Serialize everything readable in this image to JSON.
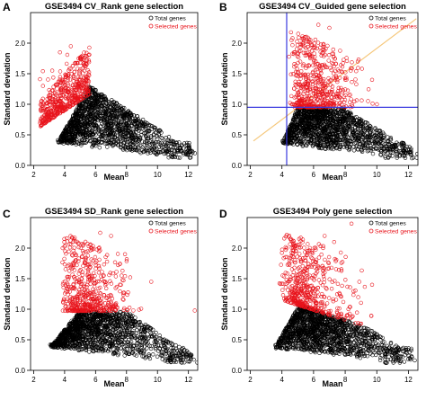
{
  "chart_data": [
    {
      "type": "scatter",
      "panel_letter": "A",
      "title": "GSE3494 CV_Rank gene selection",
      "xlabel": "Mean",
      "ylabel": "Standard deviation",
      "xlim": [
        1.8,
        12.6
      ],
      "ylim": [
        0,
        2.5
      ],
      "xticks": [
        2,
        4,
        6,
        8,
        10,
        12
      ],
      "yticks": [
        0.0,
        0.5,
        1.0,
        1.5,
        2.0
      ],
      "legend": {
        "placement": "top-right",
        "entries": [
          "Total genes",
          "Selected genes"
        ]
      },
      "series": [
        {
          "name": "Total genes",
          "color": "#000000",
          "cloud": {
            "x_range": [
              3.5,
              12.2
            ],
            "peak_x": 5.6,
            "base_sd": 0.25,
            "upper_sd_at_peak": 1.3,
            "tail_sd": 0.3
          }
        },
        {
          "name": "Selected genes",
          "color": "#e8131b",
          "cloud": {
            "x_range": [
              2.4,
              5.6
            ],
            "lower_boundary": "line from (2.5, 0.65) to (5.5, 1.15)",
            "max_sd": 1.95
          }
        }
      ]
    },
    {
      "type": "scatter",
      "panel_letter": "B",
      "title": "GSE3494 CV_Guided gene selection",
      "xlabel": "Mean",
      "ylabel": "Standard deviation",
      "xlim": [
        1.8,
        12.6
      ],
      "ylim": [
        0,
        2.5
      ],
      "xticks": [
        2,
        4,
        6,
        8,
        10,
        12
      ],
      "yticks": [
        0.0,
        0.5,
        1.0,
        1.5,
        2.0
      ],
      "legend": {
        "placement": "top-right",
        "entries": [
          "Total genes",
          "Selected genes"
        ]
      },
      "reference_lines": {
        "vertical_x": 4.3,
        "horizontal_y": 0.95,
        "color": "#3a3adf",
        "guide_line": {
          "from": [
            2.2,
            0.4
          ],
          "to": [
            12.5,
            2.4
          ],
          "color": "#f5c77a"
        }
      },
      "series": [
        {
          "name": "Total genes",
          "color": "#000000",
          "cloud": {
            "x_range": [
              4.0,
              12.2
            ],
            "peak_x": 5.6,
            "tail_sd": 0.3
          }
        },
        {
          "name": "Selected genes",
          "color": "#e8131b",
          "cloud": {
            "x_range": [
              4.3,
              10.5
            ],
            "min_sd": 0.95,
            "max_sd": 2.4
          }
        }
      ]
    },
    {
      "type": "scatter",
      "panel_letter": "C",
      "title": "GSE3494 SD_Rank gene selection",
      "xlabel": "Mean",
      "ylabel": "Standard deviation",
      "xlim": [
        1.8,
        12.6
      ],
      "ylim": [
        0,
        2.5
      ],
      "xticks": [
        2,
        4,
        6,
        8,
        10,
        12
      ],
      "yticks": [
        0.0,
        0.5,
        1.0,
        1.5,
        2.0
      ],
      "legend": {
        "placement": "top-right",
        "entries": [
          "Total genes",
          "Selected genes"
        ]
      },
      "series": [
        {
          "name": "Total genes",
          "color": "#000000",
          "cloud": {
            "x_range": [
              3.0,
              12.2
            ],
            "peak_x": 6.0,
            "max_sd": 0.97,
            "tail_sd": 0.3
          }
        },
        {
          "name": "Selected genes",
          "color": "#e8131b",
          "cloud": {
            "x_range": [
              3.7,
              10.5
            ],
            "min_sd": 0.97,
            "max_sd": 2.3
          }
        }
      ]
    },
    {
      "type": "scatter",
      "panel_letter": "D",
      "title": "GSE3494 Poly gene selection",
      "xlabel": "Maan",
      "ylabel": "Standard deviation",
      "xlim": [
        1.8,
        12.6
      ],
      "ylim": [
        0,
        2.5
      ],
      "xticks": [
        2,
        4,
        6,
        8,
        10,
        12
      ],
      "yticks": [
        0.0,
        0.5,
        1.0,
        1.5,
        2.0
      ],
      "legend": {
        "placement": "top-right",
        "entries": [
          "Total genes",
          "Selected genes"
        ]
      },
      "series": [
        {
          "name": "Total genes",
          "color": "#000000",
          "cloud": {
            "x_range": [
              3.5,
              12.2
            ],
            "peak_x": 5.6,
            "tail_sd": 0.3
          }
        },
        {
          "name": "Selected genes",
          "color": "#e8131b",
          "cloud": {
            "x_range": [
              3.8,
              10.5
            ],
            "lower_boundary": "line from (4.0, 1.15) to (9.5, 0.7)",
            "max_sd": 2.4
          }
        }
      ]
    }
  ]
}
